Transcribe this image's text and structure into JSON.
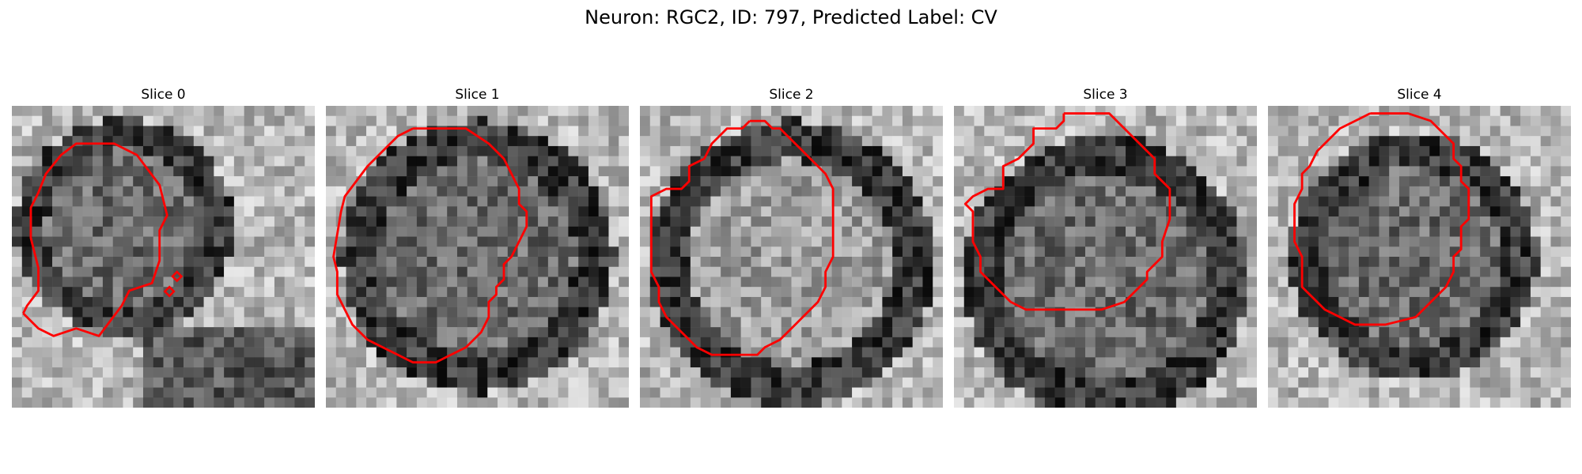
{
  "figure": {
    "title": "Neuron: RGC2, ID: 797, Predicted Label: CV",
    "grid_size": 30,
    "contour_color": "#ff0000",
    "colormap": "gray",
    "panels": [
      {
        "title": "Slice 0",
        "seed": 11,
        "cell": [
          0.37,
          0.4,
          0.34
        ],
        "ring": "dark",
        "bottom_blob": true,
        "contour": [
          [
            1.5,
            27.5
          ],
          [
            3.5,
            29.5
          ],
          [
            5.5,
            30.5
          ],
          [
            8.5,
            29.5
          ],
          [
            11.5,
            30.5
          ],
          [
            14.5,
            26.5
          ],
          [
            15.5,
            24.5
          ],
          [
            18.5,
            23.5
          ],
          [
            19.5,
            20.5
          ],
          [
            19.5,
            16.5
          ],
          [
            20.5,
            14.5
          ],
          [
            19.5,
            10.5
          ],
          [
            16.5,
            6.5
          ],
          [
            13.5,
            5
          ],
          [
            8.5,
            5
          ],
          [
            6.5,
            6.5
          ],
          [
            4.5,
            9
          ],
          [
            3.5,
            11.5
          ],
          [
            2.5,
            13.5
          ],
          [
            2.5,
            17.5
          ],
          [
            3,
            19.5
          ],
          [
            3.5,
            21.5
          ],
          [
            3.5,
            24.5
          ],
          [
            2,
            26.5
          ],
          [
            1.5,
            27.5
          ]
        ],
        "extra_marks": [
          [
            21.8,
            22.6
          ],
          [
            20.8,
            24.6
          ]
        ]
      },
      {
        "title": "Slice 1",
        "seed": 23,
        "cell": [
          0.5,
          0.5,
          0.43
        ],
        "ring": "dark",
        "bottom_blob": false,
        "contour": [
          [
            11.5,
            3
          ],
          [
            18.5,
            3
          ],
          [
            21.5,
            5
          ],
          [
            23.5,
            7
          ],
          [
            24.5,
            9
          ],
          [
            25.5,
            11
          ],
          [
            25.5,
            13
          ],
          [
            26.5,
            14
          ],
          [
            26.5,
            16
          ],
          [
            25.5,
            18
          ],
          [
            24.5,
            20
          ],
          [
            23.5,
            21
          ],
          [
            23.5,
            23
          ],
          [
            22.5,
            24
          ],
          [
            22.5,
            25
          ],
          [
            21.5,
            26
          ],
          [
            21.5,
            28
          ],
          [
            20.5,
            30
          ],
          [
            18.5,
            32
          ],
          [
            16.5,
            33
          ],
          [
            14.5,
            34
          ],
          [
            11.5,
            34
          ],
          [
            9.5,
            33
          ],
          [
            7.5,
            32
          ],
          [
            5.5,
            31
          ],
          [
            3.5,
            29
          ],
          [
            2.5,
            27
          ],
          [
            1.5,
            25
          ],
          [
            1.5,
            22
          ],
          [
            1,
            20
          ],
          [
            1.5,
            17
          ],
          [
            2,
            14
          ],
          [
            2.5,
            12
          ],
          [
            4,
            10
          ],
          [
            5.5,
            8
          ],
          [
            7.5,
            6
          ],
          [
            9.5,
            4
          ],
          [
            11.5,
            3
          ]
        ]
      },
      {
        "title": "Slice 2",
        "seed": 37,
        "cell": [
          0.5,
          0.52,
          0.45
        ],
        "ring": "light",
        "bottom_blob": false,
        "contour": [
          [
            14.5,
            2
          ],
          [
            16.5,
            2
          ],
          [
            17.5,
            3
          ],
          [
            18.5,
            3
          ],
          [
            19.5,
            4
          ],
          [
            21.5,
            6
          ],
          [
            22.5,
            7
          ],
          [
            23.5,
            8
          ],
          [
            24.5,
            9
          ],
          [
            25.5,
            11
          ],
          [
            25.5,
            20
          ],
          [
            24.5,
            22
          ],
          [
            24.5,
            24
          ],
          [
            23.5,
            26
          ],
          [
            21.5,
            28
          ],
          [
            20.5,
            29
          ],
          [
            18.5,
            31
          ],
          [
            16.5,
            32
          ],
          [
            15.5,
            33
          ],
          [
            13.5,
            33
          ],
          [
            11.5,
            33
          ],
          [
            9.5,
            33
          ],
          [
            7.5,
            32
          ],
          [
            5.5,
            30
          ],
          [
            3.5,
            28
          ],
          [
            2.5,
            26
          ],
          [
            2.5,
            24
          ],
          [
            1.5,
            22
          ],
          [
            1.5,
            19
          ],
          [
            1.5,
            15
          ],
          [
            1.5,
            12
          ],
          [
            3.5,
            11
          ],
          [
            5.5,
            11
          ],
          [
            6.5,
            10
          ],
          [
            6.5,
            8
          ],
          [
            8.5,
            7
          ],
          [
            9.5,
            5
          ],
          [
            10.5,
            4
          ],
          [
            11.5,
            3
          ],
          [
            13.5,
            3
          ],
          [
            14.5,
            2
          ]
        ]
      },
      {
        "title": "Slice 3",
        "seed": 41,
        "cell": [
          0.5,
          0.57,
          0.45
        ],
        "ring": "dark",
        "bottom_blob": false,
        "contour": [
          [
            14.5,
            1
          ],
          [
            20.5,
            1
          ],
          [
            22.5,
            3
          ],
          [
            24.5,
            5
          ],
          [
            26.5,
            7
          ],
          [
            26.5,
            9
          ],
          [
            28.5,
            11
          ],
          [
            28.5,
            15
          ],
          [
            27.5,
            18
          ],
          [
            27.5,
            20
          ],
          [
            25.5,
            22
          ],
          [
            25.5,
            23
          ],
          [
            24.5,
            24
          ],
          [
            23.5,
            25
          ],
          [
            22.5,
            26
          ],
          [
            19.5,
            27
          ],
          [
            13.5,
            27
          ],
          [
            9.5,
            27
          ],
          [
            7.5,
            26
          ],
          [
            6.5,
            25
          ],
          [
            5.5,
            24
          ],
          [
            4.5,
            23
          ],
          [
            3.5,
            22
          ],
          [
            3.5,
            20
          ],
          [
            2.5,
            18
          ],
          [
            2.5,
            14
          ],
          [
            1.5,
            13
          ],
          [
            2.5,
            12
          ],
          [
            4.5,
            11
          ],
          [
            6.5,
            11
          ],
          [
            6.5,
            8
          ],
          [
            8.5,
            7
          ],
          [
            10.5,
            5
          ],
          [
            10.5,
            3
          ],
          [
            13.5,
            3
          ],
          [
            14.5,
            2
          ],
          [
            14.5,
            1
          ]
        ]
      },
      {
        "title": "Slice 4",
        "seed": 53,
        "cell": [
          0.48,
          0.5,
          0.39
        ],
        "ring": "dark",
        "bottom_blob": false,
        "contour": [
          [
            13.5,
            1
          ],
          [
            18.5,
            1
          ],
          [
            21.5,
            2
          ],
          [
            23.5,
            4
          ],
          [
            24.5,
            5
          ],
          [
            24.5,
            7
          ],
          [
            25.5,
            8
          ],
          [
            25.5,
            10
          ],
          [
            26.5,
            11
          ],
          [
            26.5,
            15
          ],
          [
            25.5,
            16
          ],
          [
            25.5,
            19
          ],
          [
            24.5,
            20
          ],
          [
            24.5,
            22
          ],
          [
            23.5,
            24
          ],
          [
            22.5,
            25
          ],
          [
            21.5,
            26
          ],
          [
            20.5,
            27
          ],
          [
            19.5,
            28
          ],
          [
            15.5,
            29
          ],
          [
            11.5,
            29
          ],
          [
            9.5,
            28
          ],
          [
            7.5,
            27
          ],
          [
            6.5,
            26
          ],
          [
            5.5,
            25
          ],
          [
            4.5,
            24
          ],
          [
            4.5,
            22
          ],
          [
            4.5,
            20
          ],
          [
            3.5,
            18
          ],
          [
            3.5,
            16
          ],
          [
            3.5,
            13
          ],
          [
            4.5,
            11
          ],
          [
            4.5,
            9
          ],
          [
            5.5,
            8
          ],
          [
            6.5,
            6
          ],
          [
            8.5,
            4
          ],
          [
            9.5,
            3
          ],
          [
            11.5,
            2
          ],
          [
            13.5,
            1
          ]
        ]
      }
    ]
  }
}
